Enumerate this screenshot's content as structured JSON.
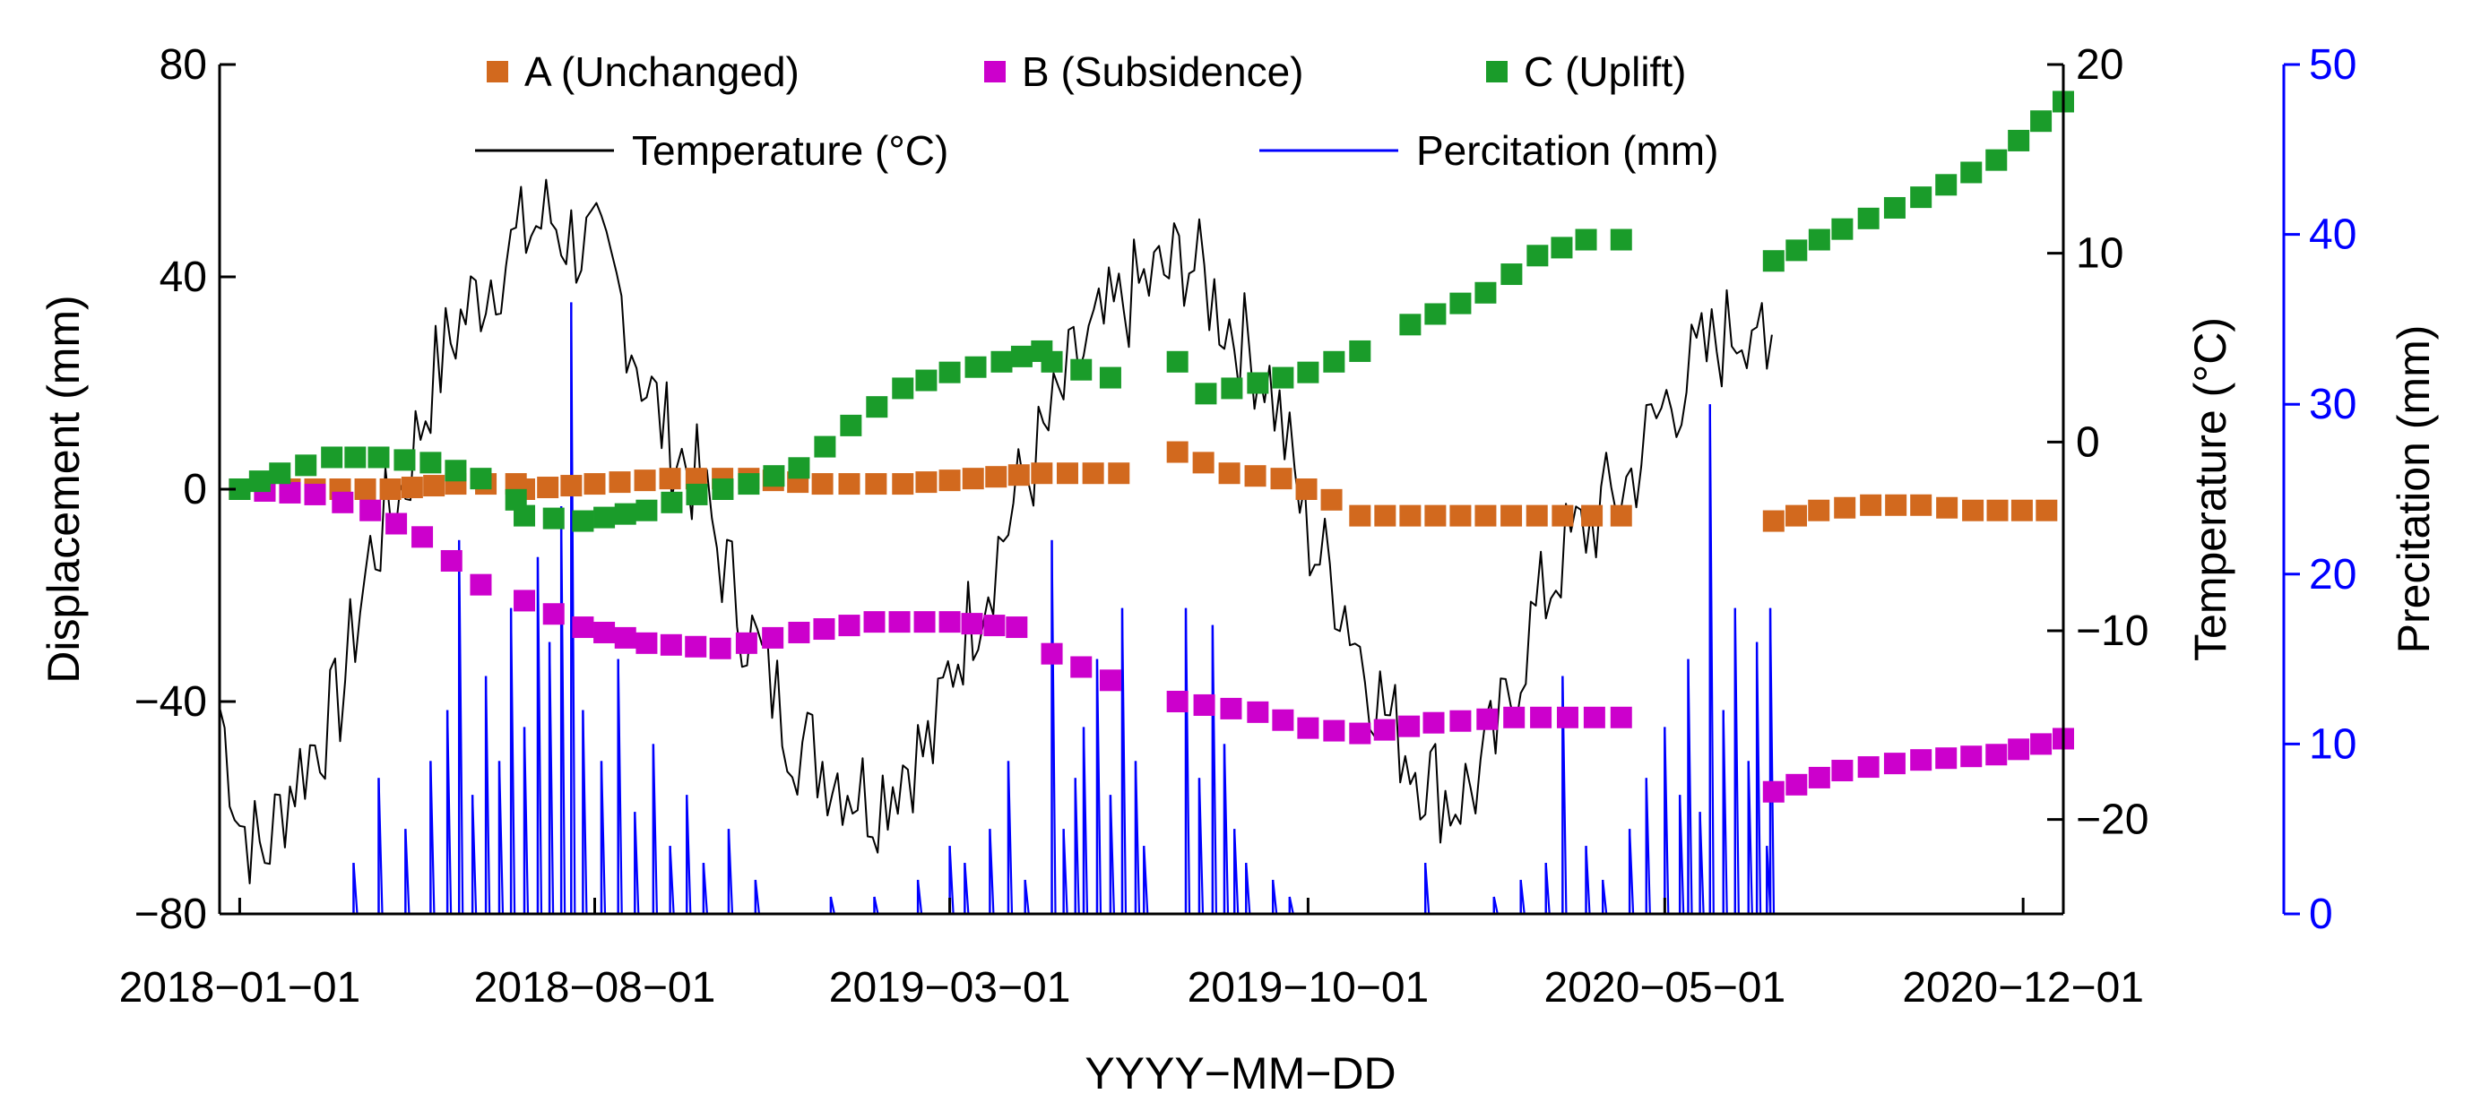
{
  "chart_data": {
    "type": "line",
    "title": "",
    "xlabel": "YYYY−MM−DD",
    "x_range": [
      "2017-12-20",
      "2020-12-25"
    ],
    "x_ticks": [
      {
        "date": "2018-01-01",
        "label": "2018−01−01"
      },
      {
        "date": "2018-08-01",
        "label": "2018−08−01"
      },
      {
        "date": "2019-03-01",
        "label": "2019−03−01"
      },
      {
        "date": "2019-10-01",
        "label": "2019−10−01"
      },
      {
        "date": "2020-05-01",
        "label": "2020−05−01"
      },
      {
        "date": "2020-12-01",
        "label": "2020−12−01"
      }
    ],
    "axes": {
      "left": {
        "label": "Displacement (mm)",
        "ylim": [
          -80,
          80
        ],
        "ticks": [
          "80",
          "40",
          "0",
          "−40",
          "−80"
        ],
        "tick_values": [
          80,
          40,
          0,
          -40,
          -80
        ],
        "color": "#000000"
      },
      "right1": {
        "label": "Temperature (°C)",
        "ylim": [
          -25,
          20
        ],
        "ticks": [
          "20",
          "10",
          "0",
          "−10",
          "−20"
        ],
        "tick_values": [
          20,
          10,
          0,
          -10,
          -20
        ],
        "color": "#000000"
      },
      "right2": {
        "label": "Precitation (mm)",
        "ylim": [
          0,
          50
        ],
        "ticks": [
          "50",
          "40",
          "30",
          "20",
          "10",
          "0"
        ],
        "tick_values": [
          50,
          40,
          30,
          20,
          10,
          0
        ],
        "color": "#0000ff"
      }
    },
    "legend": {
      "placement": "top",
      "entries": [
        {
          "label": "A  (Unchanged)",
          "marker": "square",
          "color": "#d2691e"
        },
        {
          "label": "B  (Subsidence)",
          "marker": "square",
          "color": "#cc00cc"
        },
        {
          "label": "C  (Uplift)",
          "marker": "square",
          "color": "#1a9c2a"
        },
        {
          "label": "Temperature (°C)",
          "marker": "line",
          "color": "#000000"
        },
        {
          "label": "Percitation (mm)",
          "marker": "line",
          "color": "#0000ff"
        }
      ]
    },
    "series": [
      {
        "name": "A (Unchanged)",
        "axis": "left",
        "type": "scatter",
        "marker": "square",
        "color": "#d2691e",
        "segments": [
          [
            [
              "2018-01-01",
              0
            ],
            [
              "2018-02-15",
              0
            ],
            [
              "2018-04-01",
              0
            ],
            [
              "2018-05-10",
              1
            ],
            [
              "2018-06-15",
              1
            ],
            [
              "2018-06-20",
              0
            ],
            [
              "2018-08-01",
              1
            ],
            [
              "2018-09-15",
              2
            ],
            [
              "2018-11-01",
              2
            ],
            [
              "2018-12-15",
              1
            ],
            [
              "2019-02-01",
              1
            ],
            [
              "2019-03-15",
              2
            ],
            [
              "2019-04-25",
              3
            ],
            [
              "2019-06-10",
              3
            ]
          ],
          [
            [
              "2019-07-15",
              7
            ],
            [
              "2019-08-15",
              3
            ],
            [
              "2019-09-15",
              2
            ],
            [
              "2019-10-15",
              -2
            ],
            [
              "2019-11-01",
              -5
            ],
            [
              "2019-12-01",
              -5
            ],
            [
              "2020-01-15",
              -5
            ],
            [
              "2020-03-01",
              -5
            ],
            [
              "2020-04-05",
              -5
            ]
          ],
          [
            [
              "2020-07-05",
              -6
            ],
            [
              "2020-08-01",
              -4
            ],
            [
              "2020-09-01",
              -3
            ],
            [
              "2020-10-01",
              -3
            ],
            [
              "2020-11-01",
              -4
            ],
            [
              "2020-12-15",
              -4
            ]
          ]
        ]
      },
      {
        "name": "B (Subsidence)",
        "axis": "left",
        "type": "scatter",
        "marker": "square",
        "color": "#cc00cc",
        "segments": [
          [
            [
              "2018-01-01",
              0
            ],
            [
              "2018-02-15",
              -1
            ],
            [
              "2018-03-20",
              -4
            ],
            [
              "2018-04-20",
              -9
            ],
            [
              "2018-05-25",
              -18
            ]
          ],
          [
            [
              "2018-06-20",
              -21
            ],
            [
              "2018-07-25",
              -26
            ],
            [
              "2018-09-01",
              -29
            ],
            [
              "2018-10-15",
              -30
            ],
            [
              "2018-12-01",
              -27
            ],
            [
              "2019-01-15",
              -25
            ],
            [
              "2019-03-01",
              -25
            ],
            [
              "2019-04-10",
              -26
            ]
          ],
          [
            [
              "2019-05-01",
              -31
            ],
            [
              "2019-06-05",
              -36
            ]
          ],
          [
            [
              "2019-07-15",
              -40
            ],
            [
              "2019-09-01",
              -42
            ],
            [
              "2019-10-01",
              -45
            ],
            [
              "2019-11-01",
              -46
            ],
            [
              "2019-12-15",
              -44
            ],
            [
              "2020-02-01",
              -43
            ],
            [
              "2020-04-05",
              -43
            ]
          ],
          [
            [
              "2020-07-05",
              -57
            ],
            [
              "2020-08-15",
              -53
            ],
            [
              "2020-10-01",
              -51
            ],
            [
              "2020-11-15",
              -50
            ],
            [
              "2020-12-25",
              -47
            ]
          ]
        ]
      },
      {
        "name": "C (Uplift)",
        "axis": "left",
        "type": "scatter",
        "marker": "square",
        "color": "#1a9c2a",
        "segments": [
          [
            [
              "2018-01-01",
              0
            ],
            [
              "2018-01-25",
              3
            ],
            [
              "2018-02-25",
              6
            ],
            [
              "2018-03-25",
              6
            ],
            [
              "2018-04-25",
              5
            ],
            [
              "2018-05-25",
              2
            ],
            [
              "2018-06-15",
              -2
            ]
          ],
          [
            [
              "2018-06-20",
              -5
            ],
            [
              "2018-07-25",
              -6
            ],
            [
              "2018-09-01",
              -4
            ],
            [
              "2018-10-01",
              -1
            ],
            [
              "2018-11-01",
              1
            ],
            [
              "2018-12-01",
              4
            ],
            [
              "2019-01-01",
              12
            ],
            [
              "2019-02-01",
              19
            ],
            [
              "2019-03-01",
              22
            ],
            [
              "2019-04-01",
              24
            ],
            [
              "2019-04-25",
              26
            ]
          ],
          [
            [
              "2019-05-01",
              24
            ],
            [
              "2019-06-05",
              21
            ]
          ],
          [
            [
              "2019-07-15",
              24
            ],
            [
              "2019-08-01",
              18
            ],
            [
              "2019-09-01",
              20
            ],
            [
              "2019-10-01",
              22
            ],
            [
              "2019-11-01",
              26
            ]
          ],
          [
            [
              "2019-12-01",
              31
            ],
            [
              "2020-01-15",
              37
            ],
            [
              "2020-02-15",
              44
            ],
            [
              "2020-03-15",
              47
            ],
            [
              "2020-04-05",
              47
            ]
          ],
          [
            [
              "2020-07-05",
              43
            ],
            [
              "2020-08-15",
              49
            ],
            [
              "2020-10-01",
              55
            ],
            [
              "2020-11-15",
              62
            ],
            [
              "2020-12-25",
              73
            ]
          ]
        ]
      },
      {
        "name": "Temperature (°C)",
        "axis": "right1",
        "type": "line",
        "color": "#000000",
        "points": [
          [
            "2017-12-20",
            -14
          ],
          [
            "2018-01-01",
            -20
          ],
          [
            "2018-01-15",
            -22
          ],
          [
            "2018-02-01",
            -18
          ],
          [
            "2018-03-01",
            -14
          ],
          [
            "2018-03-20",
            -6
          ],
          [
            "2018-04-10",
            -2
          ],
          [
            "2018-04-25",
            3
          ],
          [
            "2018-05-10",
            6
          ],
          [
            "2018-06-01",
            9
          ],
          [
            "2018-06-20",
            11
          ],
          [
            "2018-07-05",
            12
          ],
          [
            "2018-07-15",
            11
          ],
          [
            "2018-08-01",
            10
          ],
          [
            "2018-08-15",
            8
          ],
          [
            "2018-09-01",
            3
          ],
          [
            "2018-09-15",
            0
          ],
          [
            "2018-10-01",
            -2
          ],
          [
            "2018-10-15",
            -6
          ],
          [
            "2018-11-01",
            -10
          ],
          [
            "2018-11-15",
            -13
          ],
          [
            "2018-12-01",
            -16
          ],
          [
            "2019-01-01",
            -18
          ],
          [
            "2019-01-15",
            -19
          ],
          [
            "2019-02-01",
            -17
          ],
          [
            "2019-02-20",
            -16
          ],
          [
            "2019-03-01",
            -12
          ],
          [
            "2019-03-20",
            -8
          ],
          [
            "2019-04-10",
            -3
          ],
          [
            "2019-05-01",
            1
          ],
          [
            "2019-05-15",
            4
          ],
          [
            "2019-06-01",
            6
          ],
          [
            "2019-06-20",
            8
          ],
          [
            "2019-07-10",
            9
          ],
          [
            "2019-07-20",
            10
          ],
          [
            "2019-08-10",
            7
          ],
          [
            "2019-08-25",
            5
          ],
          [
            "2019-09-05",
            4
          ],
          [
            "2019-09-15",
            1
          ],
          [
            "2019-10-01",
            -5
          ],
          [
            "2019-10-15",
            -7
          ],
          [
            "2019-10-25",
            -9
          ],
          [
            "2019-11-05",
            -12
          ],
          [
            "2019-11-20",
            -15
          ],
          [
            "2019-12-05",
            -17
          ],
          [
            "2019-12-25",
            -19
          ],
          [
            "2020-01-10",
            -18
          ],
          [
            "2020-01-25",
            -15
          ],
          [
            "2020-02-10",
            -10
          ],
          [
            "2020-03-01",
            -6
          ],
          [
            "2020-03-20",
            -4
          ],
          [
            "2020-04-10",
            -2
          ],
          [
            "2020-04-20",
            0
          ],
          [
            "2020-05-01",
            2
          ],
          [
            "2020-05-20",
            4
          ],
          [
            "2020-06-10",
            6
          ],
          [
            "2020-06-25",
            7
          ],
          [
            "2020-07-01",
            2
          ],
          [
            "2020-07-05",
            6
          ]
        ]
      },
      {
        "name": "Percitation (mm)",
        "axis": "right2",
        "type": "line",
        "color": "#0000ff",
        "baseline": 0,
        "spikes": [
          [
            "2018-03-10",
            3
          ],
          [
            "2018-03-25",
            8
          ],
          [
            "2018-04-10",
            5
          ],
          [
            "2018-04-25",
            9
          ],
          [
            "2018-05-05",
            12
          ],
          [
            "2018-05-12",
            22
          ],
          [
            "2018-05-20",
            7
          ],
          [
            "2018-05-28",
            14
          ],
          [
            "2018-06-05",
            9
          ],
          [
            "2018-06-12",
            18
          ],
          [
            "2018-06-20",
            11
          ],
          [
            "2018-06-28",
            21
          ],
          [
            "2018-07-05",
            16
          ],
          [
            "2018-07-12",
            24
          ],
          [
            "2018-07-18",
            36
          ],
          [
            "2018-07-25",
            12
          ],
          [
            "2018-08-05",
            9
          ],
          [
            "2018-08-15",
            15
          ],
          [
            "2018-08-25",
            6
          ],
          [
            "2018-09-05",
            10
          ],
          [
            "2018-09-15",
            4
          ],
          [
            "2018-09-25",
            7
          ],
          [
            "2018-10-05",
            3
          ],
          [
            "2018-10-20",
            5
          ],
          [
            "2018-11-05",
            2
          ],
          [
            "2018-12-20",
            1
          ],
          [
            "2019-01-15",
            1
          ],
          [
            "2019-02-10",
            2
          ],
          [
            "2019-03-01",
            4
          ],
          [
            "2019-03-10",
            3
          ],
          [
            "2019-03-25",
            5
          ],
          [
            "2019-04-05",
            9
          ],
          [
            "2019-04-15",
            2
          ],
          [
            "2019-05-01",
            22
          ],
          [
            "2019-05-08",
            5
          ],
          [
            "2019-05-15",
            8
          ],
          [
            "2019-05-20",
            11
          ],
          [
            "2019-05-28",
            15
          ],
          [
            "2019-06-05",
            7
          ],
          [
            "2019-06-12",
            18
          ],
          [
            "2019-06-20",
            9
          ],
          [
            "2019-06-25",
            4
          ],
          [
            "2019-07-20",
            18
          ],
          [
            "2019-07-28",
            8
          ],
          [
            "2019-08-05",
            17
          ],
          [
            "2019-08-12",
            10
          ],
          [
            "2019-08-18",
            5
          ],
          [
            "2019-08-25",
            3
          ],
          [
            "2019-09-10",
            2
          ],
          [
            "2019-09-20",
            1
          ],
          [
            "2019-12-10",
            3
          ],
          [
            "2020-01-20",
            1
          ],
          [
            "2020-02-05",
            2
          ],
          [
            "2020-02-20",
            3
          ],
          [
            "2020-03-01",
            14
          ],
          [
            "2020-03-15",
            4
          ],
          [
            "2020-03-25",
            2
          ],
          [
            "2020-04-10",
            5
          ],
          [
            "2020-04-20",
            8
          ],
          [
            "2020-05-01",
            11
          ],
          [
            "2020-05-10",
            7
          ],
          [
            "2020-05-15",
            15
          ],
          [
            "2020-05-22",
            6
          ],
          [
            "2020-05-28",
            30
          ],
          [
            "2020-06-05",
            12
          ],
          [
            "2020-06-12",
            18
          ],
          [
            "2020-06-20",
            9
          ],
          [
            "2020-06-25",
            16
          ],
          [
            "2020-07-01",
            4
          ],
          [
            "2020-07-03",
            18
          ]
        ]
      }
    ]
  }
}
